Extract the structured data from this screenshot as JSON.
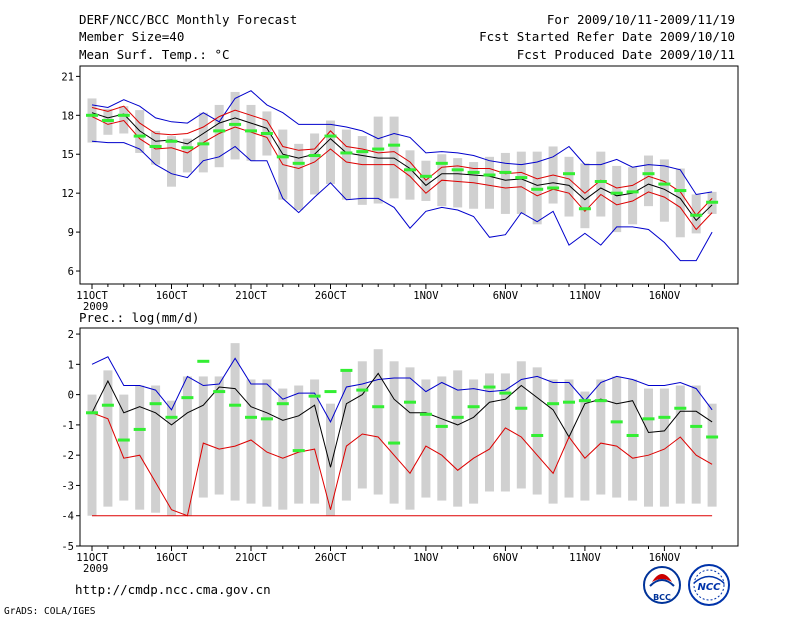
{
  "header": {
    "title": "DERF/NCC/BCC Monthly Forecast",
    "member_size": "Member Size=40",
    "variable1": "Mean Surf. Temp.: °C",
    "period": "For 2009/10/11-2009/11/19",
    "started": "Fcst Started Refer Date 2009/10/10",
    "produced": "Fcst Produced Date 2009/10/11"
  },
  "footer": {
    "url": "http://cmdp.ncc.cma.gov.cn",
    "grads": "GrADS: COLA/IGES",
    "logo_bcc": "BCC",
    "logo_ncc": "NCC"
  },
  "colors": {
    "blue": "#0000cc",
    "red": "#dd0000",
    "green": "#33ee33",
    "box": "#d0d0d0",
    "black": "#000000"
  },
  "chart_data": [
    {
      "type": "line",
      "title": "Mean Surf. Temp.: °C",
      "x_start_label": "11OCT",
      "year_label": "2009",
      "x_tick_labels": [
        "11OCT",
        "16OCT",
        "21OCT",
        "26OCT",
        "1NOV",
        "6NOV",
        "11NOV",
        "16NOV"
      ],
      "x_tick_days": [
        0,
        5,
        10,
        15,
        21,
        26,
        31,
        36
      ],
      "ylim": [
        5,
        21.8
      ],
      "yticks": [
        6,
        9,
        12,
        15,
        18,
        21
      ],
      "days": 40,
      "series": [
        {
          "name": "max",
          "color": "blue",
          "values": [
            18.8,
            18.6,
            19.2,
            18.7,
            17.8,
            17.5,
            17.4,
            18.2,
            17.5,
            19.3,
            19.9,
            18.8,
            18.2,
            17.3,
            17.3,
            17.3,
            17.1,
            16.8,
            16.2,
            16.6,
            16.3,
            15.1,
            15.2,
            15.1,
            14.9,
            14.5,
            14.3,
            14.2,
            14.4,
            14.8,
            15.6,
            14.2,
            14.2,
            14.6,
            14.0,
            14.2,
            14.1,
            13.8,
            11.9,
            12.1
          ]
        },
        {
          "name": "q75",
          "color": "red",
          "values": [
            18.6,
            18.3,
            18.7,
            17.4,
            16.6,
            16.5,
            16.6,
            17.1,
            17.9,
            18.4,
            18.0,
            17.6,
            15.6,
            15.3,
            15.4,
            16.8,
            15.6,
            15.4,
            15.1,
            15.2,
            14.4,
            13.0,
            14.0,
            14.1,
            13.9,
            13.9,
            13.5,
            13.6,
            13.1,
            13.4,
            13.1,
            12.0,
            13.0,
            12.4,
            12.6,
            13.3,
            12.9,
            12.1,
            10.3,
            11.6
          ]
        },
        {
          "name": "mean",
          "color": "black",
          "values": [
            18.2,
            17.8,
            18.1,
            16.8,
            16.0,
            16.1,
            15.8,
            16.6,
            17.4,
            17.8,
            17.4,
            17.0,
            15.0,
            14.7,
            15.0,
            16.2,
            15.1,
            14.9,
            14.7,
            14.7,
            13.9,
            12.6,
            13.5,
            13.5,
            13.4,
            13.3,
            13.0,
            13.1,
            12.6,
            12.8,
            12.6,
            11.5,
            12.4,
            11.8,
            12.0,
            12.7,
            12.3,
            11.6,
            9.9,
            11.1
          ]
        },
        {
          "name": "q25",
          "color": "red",
          "values": [
            17.9,
            17.3,
            17.6,
            16.2,
            15.4,
            15.5,
            15.1,
            15.9,
            16.6,
            17.1,
            16.7,
            16.3,
            14.2,
            13.9,
            14.4,
            15.4,
            14.4,
            14.2,
            14.2,
            14.2,
            13.3,
            12.0,
            13.0,
            12.9,
            12.8,
            12.6,
            12.4,
            12.5,
            11.8,
            12.3,
            12.0,
            10.6,
            11.9,
            11.1,
            11.4,
            12.1,
            11.7,
            10.9,
            9.2,
            10.5
          ]
        },
        {
          "name": "min",
          "color": "blue",
          "values": [
            16.0,
            15.9,
            15.9,
            15.4,
            14.2,
            13.5,
            13.2,
            14.5,
            14.8,
            15.6,
            14.5,
            14.5,
            11.6,
            10.5,
            11.7,
            12.8,
            11.5,
            11.6,
            11.6,
            10.9,
            9.3,
            10.6,
            10.9,
            10.7,
            10.2,
            8.6,
            8.8,
            10.5,
            9.8,
            10.6,
            8.0,
            8.9,
            8.0,
            9.4,
            9.4,
            9.2,
            8.2,
            6.8,
            6.8,
            9.0
          ]
        }
      ],
      "ensemble_box": {
        "low": [
          15.9,
          16.5,
          16.6,
          15.1,
          14.2,
          12.5,
          13.6,
          13.6,
          14.0,
          14.6,
          14.5,
          14.9,
          11.5,
          10.7,
          11.9,
          12.7,
          11.5,
          11.1,
          11.2,
          11.6,
          11.5,
          11.4,
          11.0,
          10.9,
          10.8,
          10.8,
          10.4,
          10.4,
          9.6,
          11.2,
          10.2,
          9.3,
          10.2,
          9.0,
          9.6,
          11.0,
          9.8,
          8.6,
          8.9,
          10.4
        ],
        "high": [
          19.3,
          18.5,
          18.7,
          18.4,
          16.8,
          16.4,
          16.2,
          18.2,
          18.8,
          19.8,
          18.8,
          18.3,
          16.9,
          15.8,
          16.6,
          17.6,
          16.9,
          16.4,
          17.9,
          17.9,
          15.3,
          14.5,
          15.0,
          14.7,
          14.4,
          14.8,
          15.1,
          15.2,
          15.2,
          15.6,
          14.8,
          14.3,
          15.2,
          14.1,
          14.0,
          14.9,
          14.6,
          13.9,
          11.9,
          12.1
        ]
      },
      "observed": [
        18.0,
        17.6,
        18.0,
        16.4,
        15.6,
        16.0,
        15.5,
        15.8,
        16.8,
        17.3,
        16.8,
        16.6,
        14.8,
        14.3,
        14.9,
        16.4,
        15.1,
        15.2,
        15.4,
        15.7,
        13.8,
        13.3,
        14.3,
        13.8,
        13.6,
        13.4,
        13.6,
        13.2,
        12.3,
        12.4,
        13.5,
        10.8,
        12.9,
        12.0,
        12.1,
        13.5,
        12.7,
        12.2,
        10.3,
        11.3
      ]
    },
    {
      "type": "line",
      "title": "Prec.: log(mm/d)",
      "x_start_label": "11OCT",
      "year_label": "2009",
      "x_tick_labels": [
        "11OCT",
        "16OCT",
        "21OCT",
        "26OCT",
        "1NOV",
        "6NOV",
        "11NOV",
        "16NOV"
      ],
      "x_tick_days": [
        0,
        5,
        10,
        15,
        21,
        26,
        31,
        36
      ],
      "ylim": [
        -5,
        2.2
      ],
      "yticks": [
        -5,
        -4,
        -3,
        -2,
        -1,
        0,
        1,
        2
      ],
      "days": 40,
      "series": [
        {
          "name": "max",
          "color": "blue",
          "values": [
            1.0,
            1.25,
            0.3,
            0.3,
            0.15,
            -0.5,
            0.6,
            0.3,
            0.35,
            1.2,
            0.35,
            0.35,
            -0.15,
            0.05,
            0.05,
            -0.9,
            0.25,
            0.35,
            0.5,
            0.55,
            0.55,
            0.1,
            0.4,
            0.15,
            0.2,
            0.1,
            0.15,
            0.5,
            0.6,
            0.4,
            0.4,
            -0.2,
            0.4,
            0.6,
            0.5,
            0.3,
            0.3,
            0.4,
            0.2,
            -0.5
          ]
        },
        {
          "name": "mean",
          "color": "black",
          "values": [
            -0.6,
            0.45,
            -0.6,
            -0.4,
            -0.6,
            -1.0,
            -0.6,
            -0.35,
            0.25,
            0.2,
            -0.4,
            -0.6,
            -0.85,
            -0.7,
            -0.35,
            -2.4,
            -0.3,
            0.0,
            0.7,
            -0.15,
            -0.6,
            -0.6,
            -0.8,
            -1.0,
            -0.75,
            -0.25,
            -0.15,
            0.3,
            -0.1,
            -0.5,
            -1.4,
            -0.3,
            -0.15,
            -0.3,
            -0.2,
            -1.25,
            -1.2,
            -0.55,
            -0.55,
            -0.9
          ]
        },
        {
          "name": "q25",
          "color": "red",
          "values": [
            -0.6,
            -0.8,
            -2.1,
            -2.0,
            -2.9,
            -3.8,
            -4.0,
            -1.6,
            -1.8,
            -1.7,
            -1.5,
            -1.9,
            -2.1,
            -1.9,
            -1.8,
            -3.8,
            -1.7,
            -1.3,
            -1.4,
            -2.0,
            -2.6,
            -1.7,
            -2.0,
            -2.5,
            -2.1,
            -1.8,
            -1.1,
            -1.4,
            -2.0,
            -2.6,
            -1.4,
            -2.1,
            -1.6,
            -1.7,
            -2.1,
            -2.0,
            -1.8,
            -1.4,
            -2.0,
            -2.3
          ]
        },
        {
          "name": "min",
          "color": "red",
          "values": [
            -4.0,
            -4.0,
            -4.0,
            -4.0,
            -4.0,
            -4.0,
            -4.0,
            -4.0,
            -4.0,
            -4.0,
            -4.0,
            -4.0,
            -4.0,
            -4.0,
            -4.0,
            -4.0,
            -4.0,
            -4.0,
            -4.0,
            -4.0,
            -4.0,
            -4.0,
            -4.0,
            -4.0,
            -4.0,
            -4.0,
            -4.0,
            -4.0,
            -4.0,
            -4.0,
            -4.0,
            -4.0,
            -4.0,
            -4.0,
            -4.0,
            -4.0,
            -4.0,
            -4.0,
            -4.0,
            -4.0
          ]
        }
      ],
      "ensemble_box": {
        "low": [
          -4.0,
          -3.7,
          -3.5,
          -3.8,
          -3.9,
          -4.0,
          -4.0,
          -3.4,
          -3.3,
          -3.5,
          -3.6,
          -3.7,
          -3.8,
          -3.6,
          -3.6,
          -4.0,
          -3.5,
          -3.1,
          -3.3,
          -3.6,
          -3.8,
          -3.4,
          -3.5,
          -3.7,
          -3.6,
          -3.2,
          -3.2,
          -3.1,
          -3.3,
          -3.6,
          -3.4,
          -3.5,
          -3.3,
          -3.4,
          -3.5,
          -3.7,
          -3.7,
          -3.6,
          -3.6,
          -3.7
        ],
        "high": [
          0.0,
          0.8,
          0.0,
          0.3,
          0.3,
          -0.2,
          0.6,
          0.6,
          0.6,
          1.7,
          0.5,
          0.5,
          0.2,
          0.3,
          0.5,
          -0.3,
          0.8,
          1.1,
          1.5,
          1.1,
          0.9,
          0.5,
          0.6,
          0.8,
          0.5,
          0.7,
          0.7,
          1.1,
          0.9,
          0.5,
          0.5,
          0.1,
          0.5,
          0.6,
          0.5,
          0.2,
          0.2,
          0.3,
          0.3,
          -0.3
        ]
      },
      "observed": [
        -0.6,
        -0.35,
        -1.5,
        -1.15,
        -0.3,
        -0.75,
        -0.1,
        1.1,
        0.1,
        -0.35,
        -0.75,
        -0.8,
        -0.3,
        -1.85,
        -0.05,
        0.1,
        0.8,
        0.15,
        -0.4,
        -1.6,
        -0.25,
        -0.65,
        -1.05,
        -0.75,
        -0.4,
        0.25,
        0.05,
        -0.45,
        -1.35,
        -0.3,
        -0.25,
        -0.2,
        -0.2,
        -0.9,
        -1.35,
        -0.8,
        -0.75,
        -0.45,
        -1.05,
        -1.4
      ]
    }
  ]
}
